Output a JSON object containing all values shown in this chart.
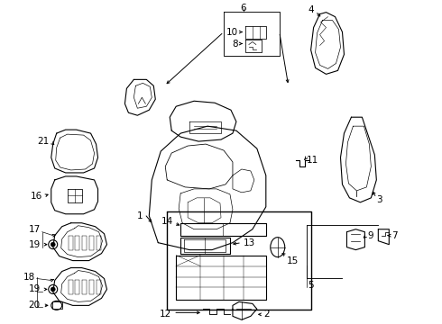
{
  "background_color": "#ffffff",
  "line_color": "#000000",
  "fig_width": 4.9,
  "fig_height": 3.6,
  "dpi": 100,
  "label_fontsize": 7.5,
  "lw": 0.8
}
